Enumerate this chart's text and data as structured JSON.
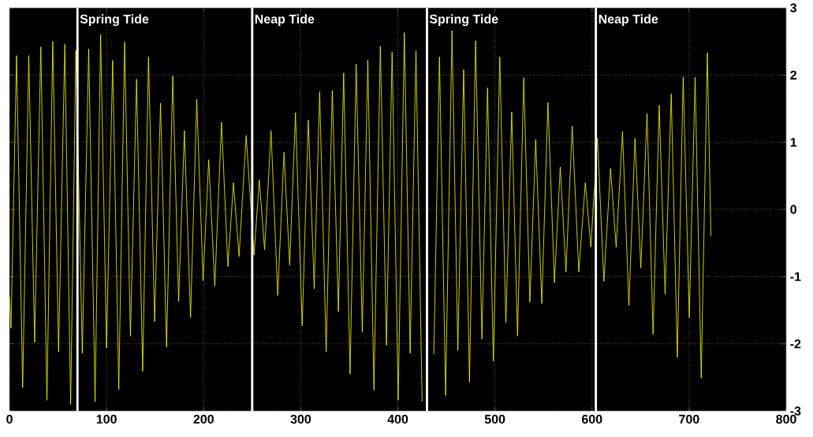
{
  "chart_data": {
    "type": "line",
    "x": [
      0,
      1.6,
      7.3,
      13.6,
      19.9,
      25.9,
      32.3,
      38.6,
      44.6,
      50.6,
      57,
      63,
      68.4,
      75,
      81.6,
      88.2,
      93.9,
      100,
      106.3,
      112.6,
      118.6,
      124.6,
      130.9,
      137.2,
      143.2,
      149.5,
      155.6,
      161.8,
      168.2,
      174.2,
      180.2,
      186.5,
      192.9,
      199.4,
      205.2,
      211.5,
      218.4,
      225,
      230.7,
      236.5,
      243.8,
      251.9,
      257.3,
      262.8,
      269.4,
      276.3,
      282.8,
      288.6,
      294.6,
      301.5,
      307.8,
      313.9,
      319.5,
      326.2,
      332.5,
      338.8,
      344.2,
      350.8,
      357.1,
      363.4,
      369.1,
      375.4,
      382,
      388.3,
      394.1,
      400.4,
      406.7,
      412.7,
      418.7,
      425,
      431,
      437.1,
      442.9,
      449.2,
      455.8,
      461.8,
      467.8,
      473.8,
      480.1,
      486.6,
      492.4,
      498.4,
      505,
      511.3,
      517.3,
      523.3,
      529.7,
      536,
      542,
      548.3,
      554.6,
      561.3,
      567.3,
      573.2,
      579.6,
      586.4,
      593.1,
      598.8,
      605.6,
      612.2,
      619.1,
      624.9,
      631.4,
      638,
      644.3,
      650.3,
      656.7,
      662.9,
      669.2,
      675.3,
      681.6,
      687.9,
      693.9,
      700.2,
      706.2,
      712.5,
      718.8,
      722.5
    ],
    "values": [
      -1.3,
      -1.77,
      2.29,
      -2.65,
      2.29,
      -1.98,
      2.42,
      -2.84,
      2.5,
      -2.12,
      2.46,
      -2.9,
      2.37,
      -2.14,
      2.39,
      -2.86,
      2.6,
      -2.06,
      2.22,
      -2.68,
      2.49,
      -1.89,
      1.94,
      -2.41,
      2.27,
      -1.67,
      1.58,
      -2.05,
      1.99,
      -1.37,
      1.17,
      -1.61,
      1.64,
      -1.06,
      0.74,
      -1.14,
      1.3,
      -0.85,
      0.4,
      -0.7,
      1.1,
      -0.68,
      0.44,
      -0.6,
      1.17,
      -1.28,
      0.85,
      -0.83,
      1.44,
      -1.73,
      1.33,
      -1.18,
      1.75,
      -2.12,
      1.77,
      -1.52,
      2.03,
      -2.45,
      2.16,
      -1.83,
      2.22,
      -2.69,
      2.43,
      -2.02,
      2.34,
      -2.84,
      2.63,
      -2.14,
      2.36,
      -2.86,
      null,
      -2.16,
      2.27,
      -2.77,
      2.66,
      -2.1,
      2.08,
      -2.57,
      2.51,
      -1.93,
      1.81,
      -2.26,
      2.27,
      -1.69,
      1.45,
      -1.88,
      1.96,
      -1.38,
      1.04,
      -1.4,
      1.59,
      -1.09,
      0.63,
      -0.93,
      1.24,
      -0.93,
      0.4,
      -0.56,
      1.06,
      -1.07,
      0.61,
      -0.56,
      1.16,
      -1.43,
      1.06,
      -0.87,
      1.43,
      -1.86,
      1.55,
      -1.26,
      1.72,
      -2.2,
      1.97,
      -1.61,
      1.97,
      -2.51,
      2.33,
      -0.4
    ],
    "color": "#ffff00",
    "xlim": [
      0,
      800
    ],
    "ylim": [
      -3,
      3
    ],
    "xticks": [
      0,
      100,
      200,
      300,
      400,
      500,
      600,
      700,
      800
    ],
    "yticks": [
      -3,
      -2,
      -1,
      0,
      1,
      2,
      3
    ],
    "grid": true,
    "ref_lines": [
      {
        "axis": "x",
        "value": 70,
        "label": "Spring Tide",
        "color": "#ffffff"
      },
      {
        "axis": "x",
        "value": 250,
        "label": "Neap Tide",
        "color": "#ffffff"
      },
      {
        "axis": "x",
        "value": 430,
        "label": "Spring Tide",
        "color": "#ffffff"
      },
      {
        "axis": "x",
        "value": 604,
        "label": "Neap Tide",
        "color": "#ffffff"
      }
    ]
  }
}
